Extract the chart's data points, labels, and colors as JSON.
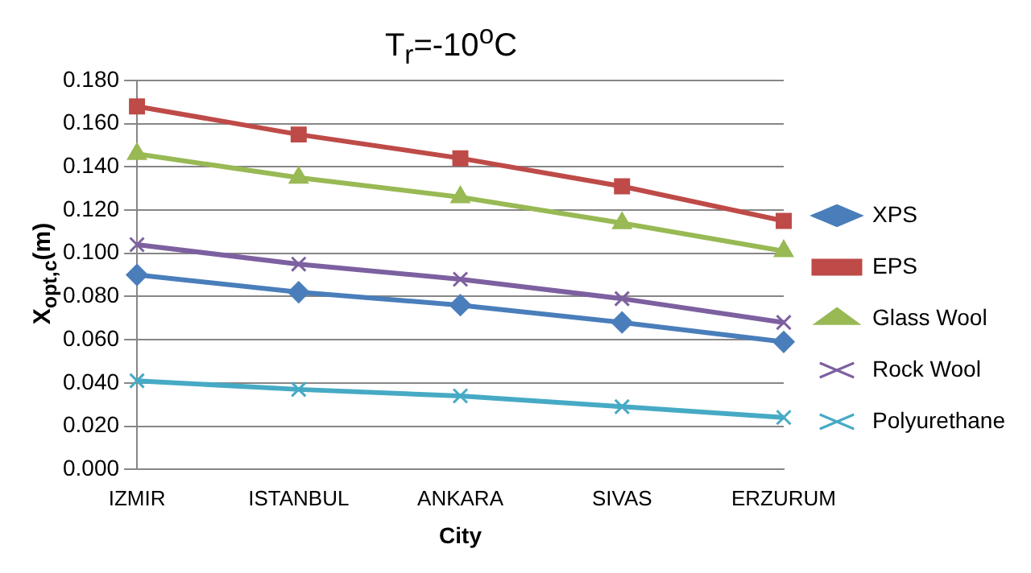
{
  "chart_data": {
    "type": "line",
    "title": "T$_{r}$=-10$^{o}$C",
    "xlabel": "City",
    "ylabel": "X$_{opt,c}$(m)",
    "categories": [
      "IZMIR",
      "ISTANBUL",
      "ANKARA",
      "SIVAS",
      "ERZURUM"
    ],
    "series": [
      {
        "name": "XPS",
        "color": "#4a7ebb",
        "marker": "diamond",
        "values": [
          0.09,
          0.082,
          0.076,
          0.068,
          0.059
        ]
      },
      {
        "name": "EPS",
        "color": "#be4b48",
        "marker": "square",
        "values": [
          0.168,
          0.155,
          0.144,
          0.131,
          0.115
        ]
      },
      {
        "name": "Glass Wool",
        "color": "#98b954",
        "marker": "triangle",
        "values": [
          0.146,
          0.135,
          0.126,
          0.114,
          0.101
        ]
      },
      {
        "name": "Rock Wool",
        "color": "#7d60a0",
        "marker": "cross",
        "values": [
          0.104,
          0.095,
          0.088,
          0.079,
          0.068
        ]
      },
      {
        "name": "Polyurethane",
        "color": "#46aac5",
        "marker": "cross",
        "values": [
          0.041,
          0.037,
          0.034,
          0.029,
          0.024
        ]
      }
    ],
    "ylim": [
      0,
      0.18
    ],
    "yticks": [
      {
        "value": 0,
        "label": "0.000"
      },
      {
        "value": 0.02,
        "label": "0.020"
      },
      {
        "value": 0.04,
        "label": "0.040"
      },
      {
        "value": 0.06,
        "label": "0.060"
      },
      {
        "value": 0.08,
        "label": "0.080"
      },
      {
        "value": 0.1,
        "label": "0.100"
      },
      {
        "value": 0.12,
        "label": "0.120"
      },
      {
        "value": 0.14,
        "label": "0.140"
      },
      {
        "value": 0.16,
        "label": "0.160"
      },
      {
        "value": 0.18,
        "label": "0.180"
      }
    ],
    "grid": "y",
    "legend": "right"
  }
}
